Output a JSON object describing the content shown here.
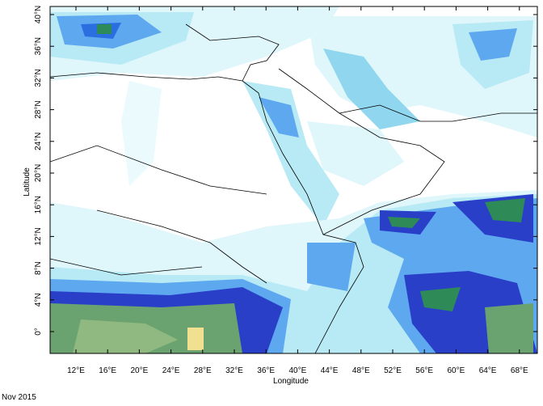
{
  "map": {
    "x_axis": {
      "label": "Longitude",
      "ticks": [
        "12°E",
        "16°E",
        "20°E",
        "24°E",
        "28°E",
        "32°E",
        "36°E",
        "40°E",
        "44°E",
        "48°E",
        "52°E",
        "56°E",
        "60°E",
        "64°E",
        "68°E"
      ]
    },
    "y_axis": {
      "label": "Latitude",
      "ticks": [
        "40°N",
        "36°N",
        "32°N",
        "28°N",
        "24°N",
        "20°N",
        "16°N",
        "12°N",
        "8°N",
        "4°N",
        "0°"
      ]
    },
    "footer": "Nov 2015"
  }
}
